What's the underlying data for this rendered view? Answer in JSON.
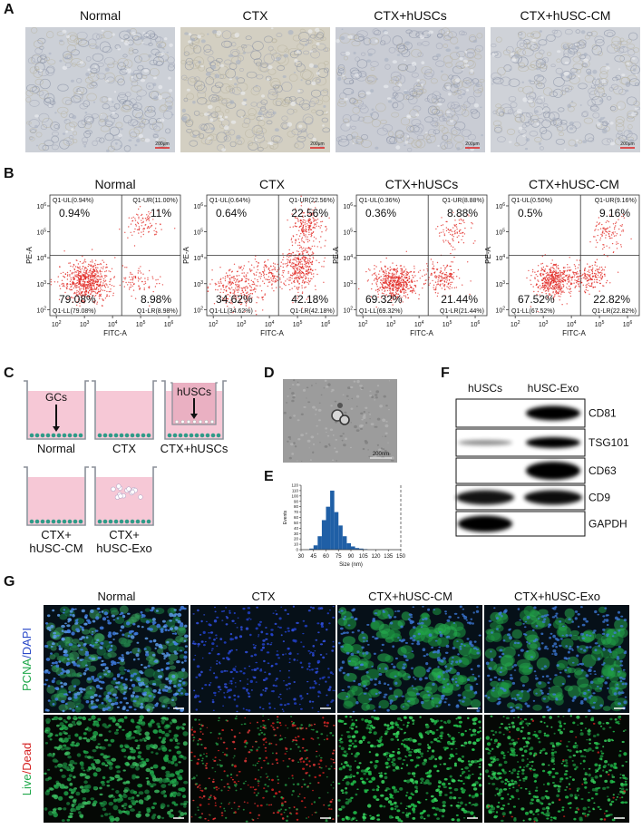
{
  "panel_a": {
    "label": "A",
    "titles": [
      "Normal",
      "CTX",
      "CTX+hUSCs",
      "CTX+hUSC-CM"
    ],
    "scale_bar": "200μm"
  },
  "panel_b": {
    "label": "B",
    "tick_base": "10",
    "tick_exponents": [
      "2",
      "3",
      "4",
      "5",
      "6"
    ],
    "x_label": "FITC-A",
    "y_label": "PE-A",
    "plots": [
      {
        "title": "Normal",
        "quadrants": {
          "ul": {
            "gate": "Q1-UL(0.94%)",
            "value": "0.94%"
          },
          "ur": {
            "gate": "Q1-UR(11.00%)",
            "value": "11%"
          },
          "ll": {
            "gate": "Q1-LL(79.08%)",
            "value": "79.08%"
          },
          "lr": {
            "gate": "Q1-LR(8.98%)",
            "value": "8.98%"
          }
        }
      },
      {
        "title": "CTX",
        "quadrants": {
          "ul": {
            "gate": "Q1-UL(0.64%)",
            "value": "0.64%"
          },
          "ur": {
            "gate": "Q1-UR(22.56%)",
            "value": "22.56%"
          },
          "ll": {
            "gate": "Q1-LL(34.62%)",
            "value": "34.62%"
          },
          "lr": {
            "gate": "Q1-LR(42.18%)",
            "value": "42.18%"
          }
        }
      },
      {
        "title": "CTX+hUSCs",
        "quadrants": {
          "ul": {
            "gate": "Q1-UL(0.36%)",
            "value": "0.36%"
          },
          "ur": {
            "gate": "Q1-UR(8.88%)",
            "value": "8.88%"
          },
          "ll": {
            "gate": "Q1-LL(69.32%)",
            "value": "69.32%"
          },
          "lr": {
            "gate": "Q1-LR(21.44%)",
            "value": "21.44%"
          }
        }
      },
      {
        "title": "CTX+hUSC-CM",
        "quadrants": {
          "ul": {
            "gate": "Q1-UL(0.50%)",
            "value": "0.5%"
          },
          "ur": {
            "gate": "Q1-UR(9.16%)",
            "value": "9.16%"
          },
          "ll": {
            "gate": "Q1-LL(67.52%)",
            "value": "67.52%"
          },
          "lr": {
            "gate": "Q1-LR(22.82%)",
            "value": "22.82%"
          }
        }
      }
    ]
  },
  "panel_c": {
    "label": "C",
    "cells_label": "GCs",
    "husc_label": "hUSCs",
    "wells": [
      {
        "lines": [
          "Normal"
        ]
      },
      {
        "lines": [
          "CTX"
        ]
      },
      {
        "lines": [
          "CTX+hUSCs"
        ]
      },
      {
        "lines": [
          "CTX+",
          "hUSC-CM"
        ]
      },
      {
        "lines": [
          "CTX+",
          "hUSC-Exo"
        ]
      }
    ]
  },
  "panel_d": {
    "label": "D",
    "scale_bar": "200nm"
  },
  "panel_e": {
    "label": "E",
    "type": "histogram",
    "x_label": "Size (nm)",
    "y_label": "Events",
    "color": "#1f5fa6",
    "bins": [
      40,
      45,
      50,
      55,
      60,
      65,
      70,
      75,
      80,
      85,
      90,
      95,
      100,
      105,
      110
    ],
    "counts": [
      2,
      8,
      25,
      55,
      80,
      110,
      70,
      45,
      25,
      12,
      6,
      3,
      2,
      1
    ],
    "xlim": [
      30,
      150
    ],
    "xticks": [
      30,
      45,
      60,
      75,
      90,
      105,
      120,
      135,
      150
    ],
    "ylim": [
      0,
      120
    ],
    "yticks": [
      0,
      10,
      20,
      30,
      40,
      50,
      60,
      70,
      80,
      90,
      100,
      110,
      120
    ]
  },
  "panel_f": {
    "label": "F",
    "columns": [
      "hUSCs",
      "hUSC-Exo"
    ],
    "rows": [
      "CD81",
      "TSG101",
      "CD63",
      "CD9",
      "GAPDH"
    ]
  },
  "panel_g": {
    "label": "G",
    "columns": [
      "Normal",
      "CTX",
      "CTX+hUSC-CM",
      "CTX+hUSC-Exo"
    ],
    "rows": [
      {
        "parts": [
          {
            "text": "PCNA",
            "color": "#1fa84a"
          },
          {
            "text": "/",
            "color": "#2a49c8"
          },
          {
            "text": "DAPI",
            "color": "#2a49c8"
          }
        ]
      },
      {
        "parts": [
          {
            "text": "Live",
            "color": "#1fa84a"
          },
          {
            "text": "/",
            "color": "#d42020"
          },
          {
            "text": "Dead",
            "color": "#d42020"
          }
        ]
      }
    ]
  }
}
